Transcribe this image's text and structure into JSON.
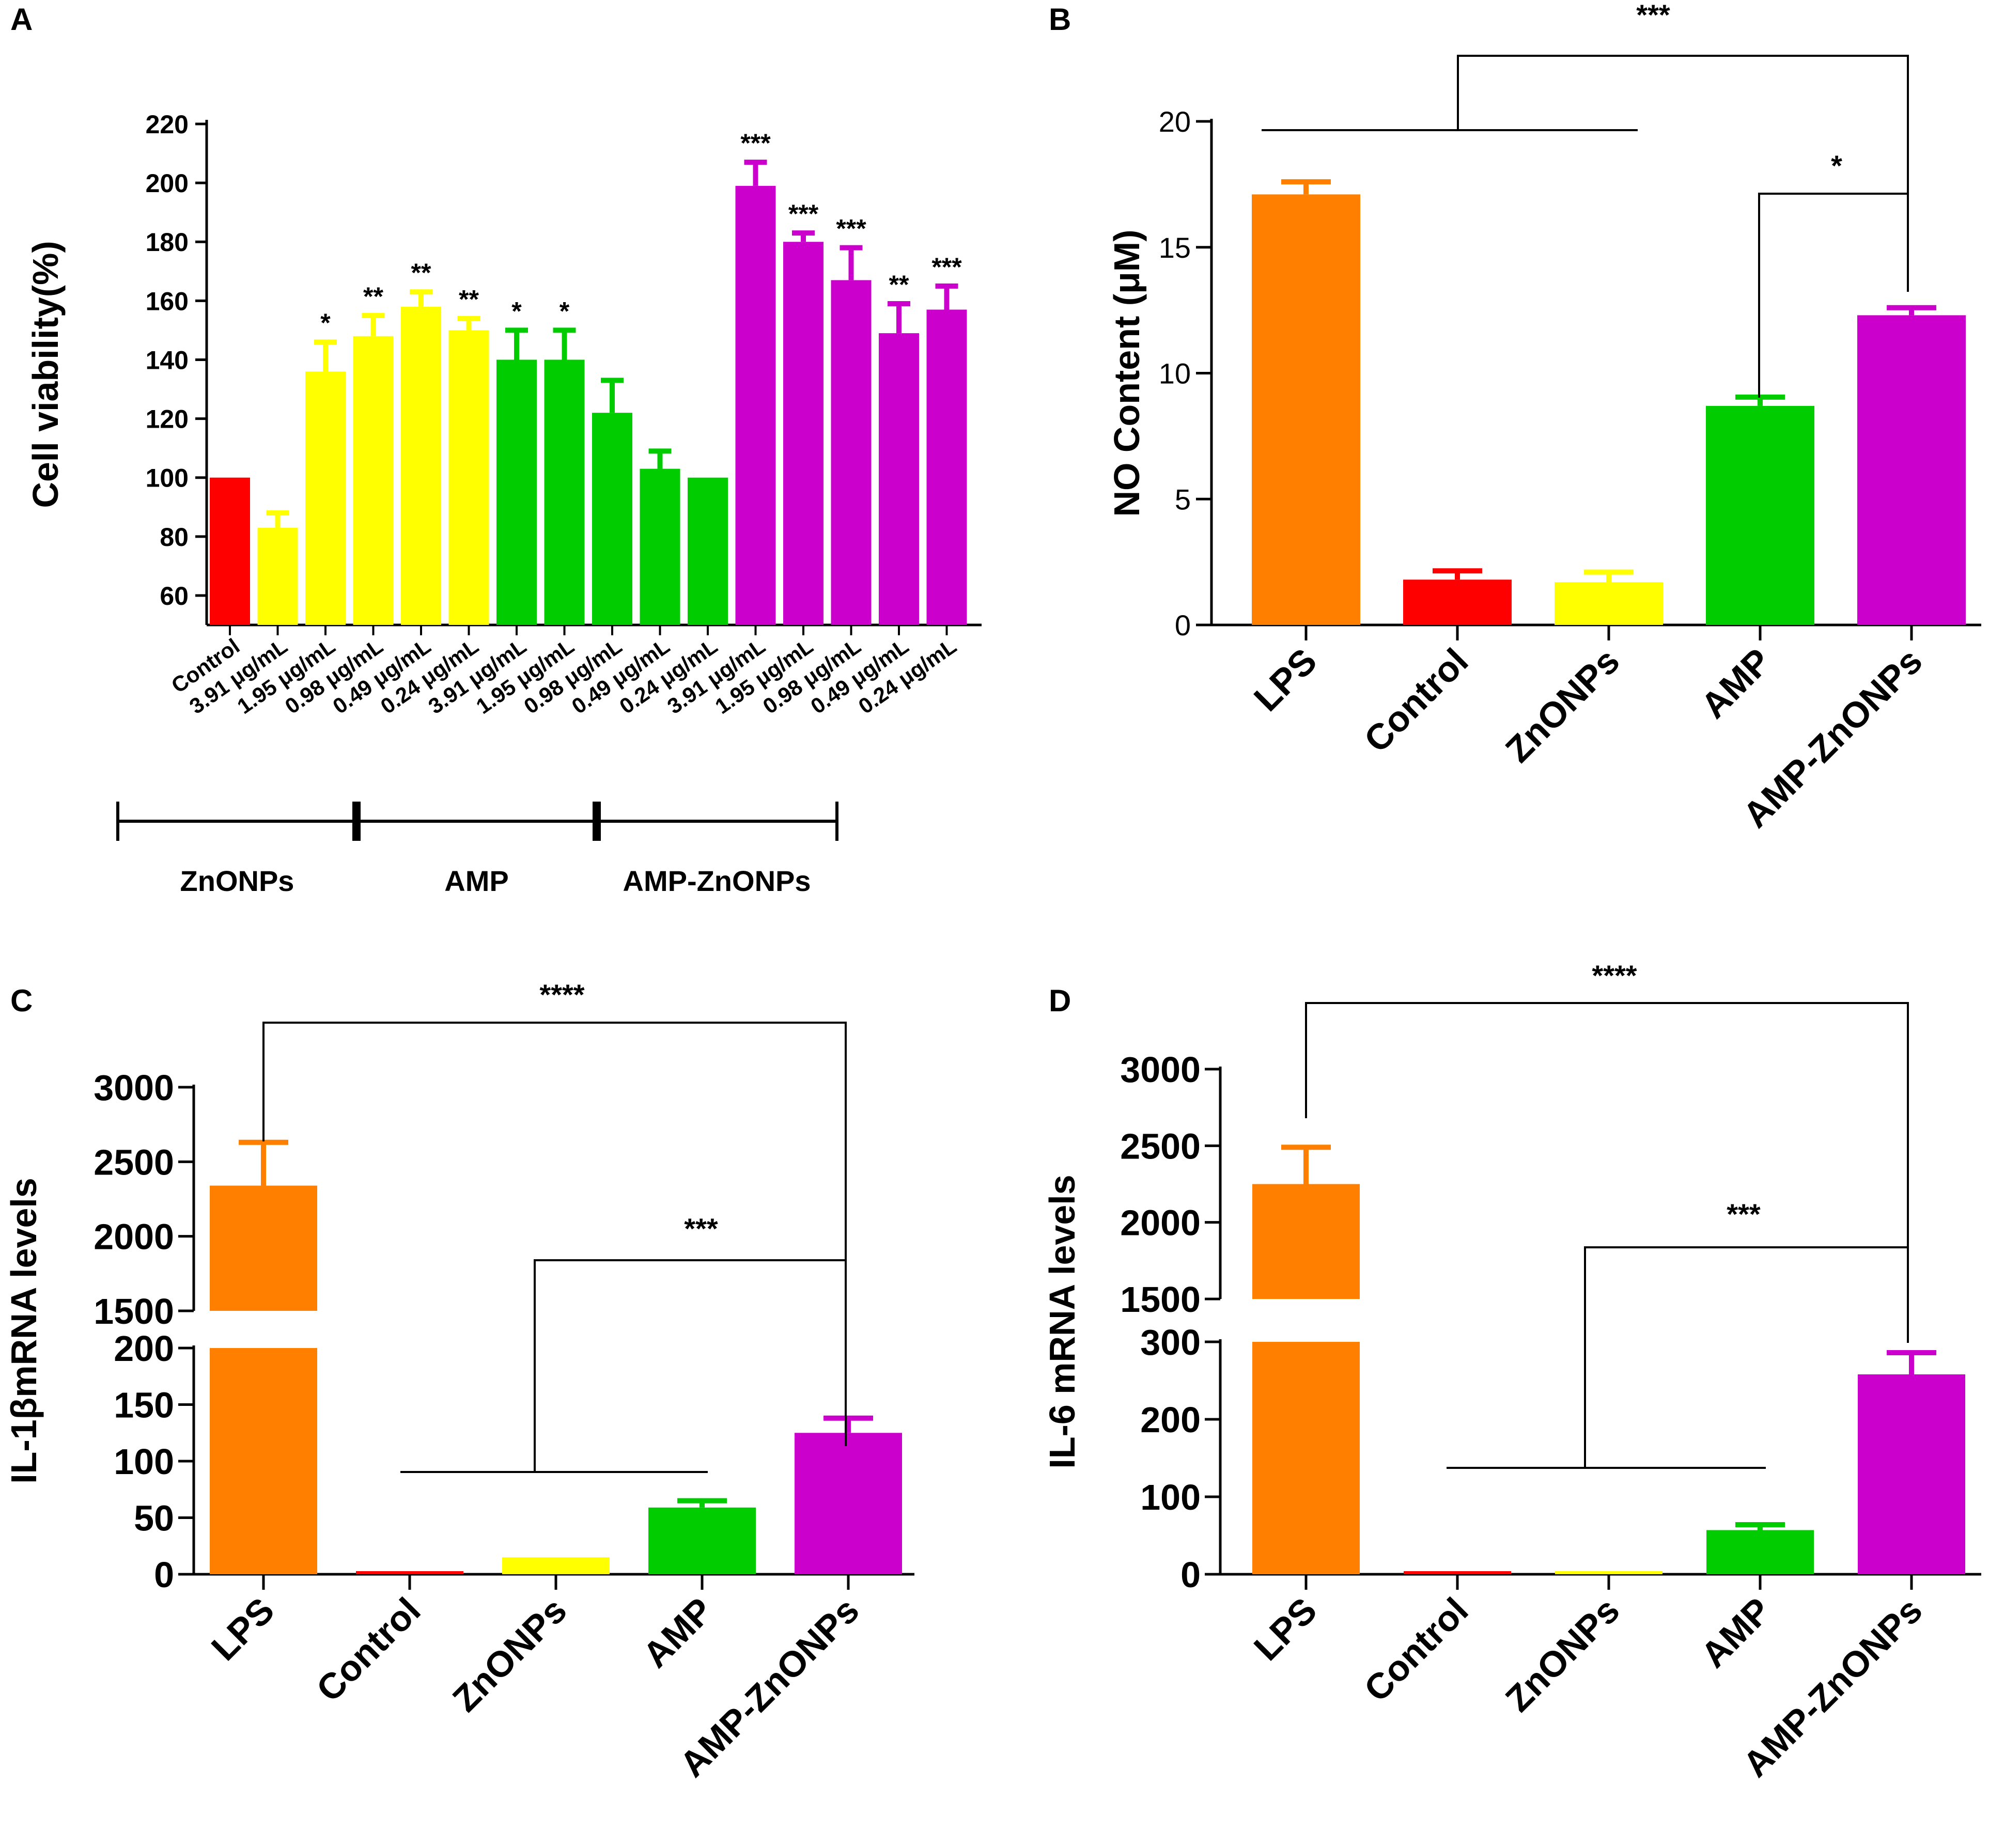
{
  "colors": {
    "red": "#ff0000",
    "yellow": "#ffff00",
    "green": "#00cc00",
    "purple": "#cc00cc",
    "orange": "#ff8000"
  },
  "chart_data": [
    {
      "panel": "A",
      "type": "bar",
      "ylabel": "Cell viability(%)",
      "ylim": [
        50,
        220
      ],
      "yticks": [
        60,
        80,
        100,
        120,
        140,
        160,
        180,
        200,
        220
      ],
      "categories": [
        "Control",
        "3.91 μg/mL",
        "1.95 μg/mL",
        "0.98 μg/mL",
        "0.49 μg/mL",
        "0.24 μg/mL",
        "3.91 μg/mL",
        "1.95 μg/mL",
        "0.98 μg/mL",
        "0.49 μg/mL",
        "0.24 μg/mL",
        "3.91 μg/mL",
        "1.95 μg/mL",
        "0.98 μg/mL",
        "0.49 μg/mL",
        "0.24 μg/mL"
      ],
      "values": [
        100,
        83,
        136,
        148,
        158,
        150,
        140,
        140,
        122,
        103,
        100,
        199,
        180,
        167,
        149,
        157
      ],
      "errors": [
        0,
        5,
        10,
        7,
        5,
        4,
        10,
        10,
        11,
        6,
        0,
        8,
        3,
        11,
        10,
        8
      ],
      "bar_colors": [
        "red",
        "yellow",
        "yellow",
        "yellow",
        "yellow",
        "yellow",
        "green",
        "green",
        "green",
        "green",
        "green",
        "purple",
        "purple",
        "purple",
        "purple",
        "purple"
      ],
      "significance": [
        "",
        "",
        "*",
        "**",
        "**",
        "**",
        "*",
        "*",
        "",
        "",
        "",
        "***",
        "***",
        "***",
        "**",
        "***"
      ],
      "groups": [
        {
          "label": "ZnONPs",
          "from": 0,
          "to": 5
        },
        {
          "label": "AMP",
          "from": 5,
          "to": 10
        },
        {
          "label": "AMP-ZnONPs",
          "from": 10,
          "to": 15
        }
      ]
    },
    {
      "panel": "B",
      "type": "bar",
      "ylabel": "NO Content (μM)",
      "ylim": [
        0,
        20
      ],
      "yticks": [
        0,
        5,
        10,
        15,
        20
      ],
      "categories": [
        "LPS",
        "Control",
        "ZnONPs",
        "AMP",
        "AMP-ZnONPs"
      ],
      "values": [
        17.1,
        1.8,
        1.7,
        8.7,
        12.3
      ],
      "errors": [
        0.5,
        0.35,
        0.4,
        0.35,
        0.3
      ],
      "bar_colors": [
        "orange",
        "red",
        "yellow",
        "green",
        "purple"
      ],
      "brackets": [
        {
          "label": "***",
          "note": "LPS–ZnONPs vs AMP-ZnONPs"
        },
        {
          "label": "*",
          "note": "AMP vs AMP-ZnONPs"
        }
      ]
    },
    {
      "panel": "C",
      "type": "bar",
      "ylabel": "IL-1βmRNA levels",
      "broken_axis": {
        "lower": [
          0,
          200
        ],
        "upper": [
          1500,
          3000
        ]
      },
      "yticks_lower": [
        0,
        50,
        100,
        150,
        200
      ],
      "yticks_upper": [
        1500,
        2000,
        2500,
        3000
      ],
      "categories": [
        "LPS",
        "Control",
        "ZnONPs",
        "AMP",
        "AMP-ZnONPs"
      ],
      "values": [
        2340,
        2,
        15,
        59,
        125
      ],
      "errors": [
        290,
        0,
        0,
        6,
        13
      ],
      "bar_colors": [
        "orange",
        "red",
        "yellow",
        "green",
        "purple"
      ],
      "brackets": [
        {
          "label": "****",
          "note": "LPS vs AMP-ZnONPs"
        },
        {
          "label": "***",
          "note": "Control–AMP vs AMP-ZnONPs"
        }
      ]
    },
    {
      "panel": "D",
      "type": "bar",
      "ylabel": "IL-6 mRNA levels",
      "broken_axis": {
        "lower": [
          0,
          300
        ],
        "upper": [
          1500,
          3000
        ]
      },
      "yticks_lower": [
        0,
        100,
        200,
        300
      ],
      "yticks_upper": [
        1500,
        2000,
        2500,
        3000
      ],
      "categories": [
        "LPS",
        "Control",
        "ZnONPs",
        "AMP",
        "AMP-ZnONPs"
      ],
      "values": [
        2250,
        2,
        4,
        57,
        258
      ],
      "errors": [
        240,
        0,
        0,
        7,
        28
      ],
      "bar_colors": [
        "orange",
        "red",
        "yellow",
        "green",
        "purple"
      ],
      "brackets": [
        {
          "label": "****",
          "note": "LPS vs AMP-ZnONPs"
        },
        {
          "label": "***",
          "note": "Control–AMP vs AMP-ZnONPs"
        }
      ]
    }
  ]
}
